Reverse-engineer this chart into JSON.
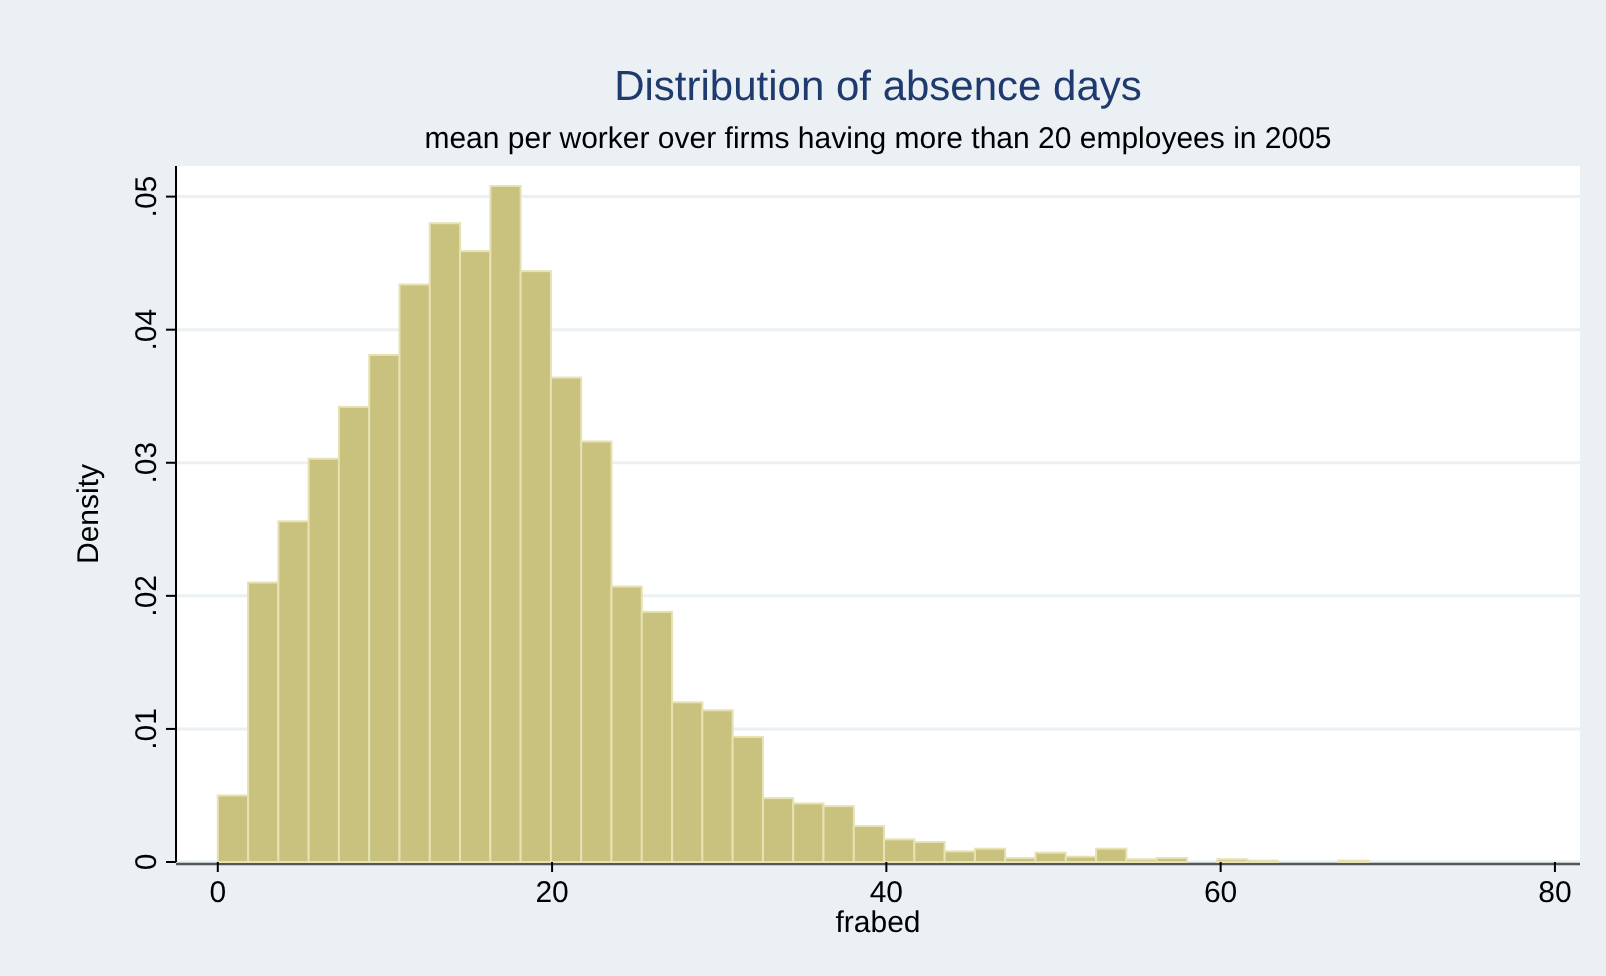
{
  "chart_data": {
    "type": "histogram",
    "title": "Distribution of absence days",
    "subtitle": "mean per worker over firms having more than 20 employees in 2005",
    "xlabel": "frabed",
    "ylabel": "Density",
    "bins": [
      0,
      1.812,
      3.624,
      5.436,
      7.248,
      9.06,
      10.872,
      12.684,
      14.496,
      16.308,
      18.12,
      19.932,
      21.744,
      23.556,
      25.368,
      27.18,
      28.992,
      30.804,
      32.616,
      34.428,
      36.24,
      38.052,
      39.864,
      41.676,
      43.488,
      45.3,
      47.112,
      48.924,
      50.736,
      52.548,
      54.36,
      56.172,
      57.984,
      59.796,
      61.608,
      63.42,
      65.232,
      67.044,
      68.856
    ],
    "values": [
      0.005,
      0.021,
      0.0256,
      0.0303,
      0.0342,
      0.0381,
      0.0434,
      0.048,
      0.0459,
      0.0508,
      0.0444,
      0.0364,
      0.0316,
      0.0207,
      0.0188,
      0.012,
      0.0114,
      0.0094,
      0.0048,
      0.0044,
      0.0042,
      0.0027,
      0.0017,
      0.0015,
      0.0008,
      0.001,
      0.0003,
      0.0007,
      0.0004,
      0.001,
      0.0002,
      0.0003,
      0,
      0.0002,
      0.0001,
      0,
      0,
      0.0001
    ],
    "color": "#c9c27e",
    "xlim": [
      -2.5,
      81.5
    ],
    "xticks": [
      0,
      20,
      40,
      60,
      80
    ],
    "ylim": [
      0,
      0.0523
    ],
    "yticks": [
      0,
      {
        "value": 0.01,
        "label": ".01"
      },
      {
        "value": 0.02,
        "label": ".02"
      },
      {
        "value": 0.03,
        "label": ".03"
      },
      {
        "value": 0.04,
        "label": ".04"
      },
      {
        "value": 0.05,
        "label": ".05"
      }
    ],
    "grid": "y"
  }
}
